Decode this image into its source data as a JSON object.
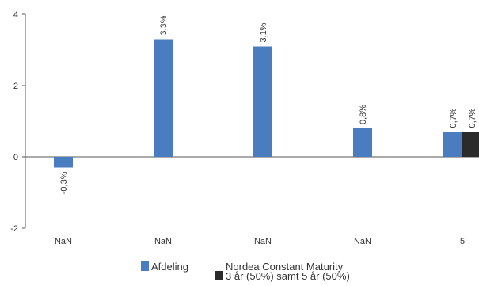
{
  "chart_data": {
    "type": "bar",
    "categories": [
      "NaN",
      "NaN",
      "NaN",
      "NaN",
      "5"
    ],
    "series": [
      {
        "name": "Afdeling",
        "color": "#4a7dbf",
        "values": [
          -0.3,
          3.3,
          3.1,
          0.8,
          0.7
        ],
        "labels": [
          "-0,3%",
          "3,3%",
          "3,1%",
          "0,8%",
          "0,7%"
        ]
      },
      {
        "name": "Nordea Constant Maturity\n3 år (50%) samt 5 år (50%)",
        "name_lines": [
          "Nordea Constant Maturity",
          "3 år (50%) samt 5 år (50%)"
        ],
        "color": "#2b2b2b",
        "values": [
          null,
          null,
          null,
          null,
          0.7
        ],
        "labels": [
          null,
          null,
          null,
          null,
          "0,7%"
        ]
      }
    ],
    "yticks": [
      "4",
      "2",
      "0",
      "-2"
    ],
    "ytick_values": [
      4,
      2,
      0,
      -2
    ],
    "ylim": [
      -2,
      4
    ],
    "grid": false,
    "legend_position": "bottom"
  }
}
